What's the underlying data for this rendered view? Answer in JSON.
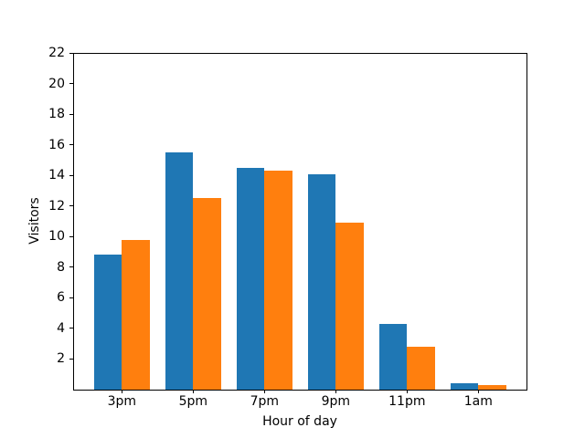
{
  "figure": {
    "background": "#ffffff",
    "spine_color": "#000000"
  },
  "chart_data": {
    "type": "bar",
    "title": "",
    "xlabel": "Hour of day",
    "ylabel": "Visitors",
    "categories": [
      "3pm",
      "5pm",
      "7pm",
      "9pm",
      "11pm",
      "1am"
    ],
    "series": [
      {
        "name": "blue",
        "color": "#1f77b4",
        "values": [
          8.8,
          15.5,
          14.5,
          14.1,
          4.3,
          0.4
        ]
      },
      {
        "name": "orange",
        "color": "#ff7f0e",
        "values": [
          9.8,
          12.5,
          14.3,
          10.9,
          2.8,
          0.3
        ]
      }
    ],
    "ylim": [
      0,
      22
    ],
    "yticks": [
      2,
      4,
      6,
      8,
      10,
      12,
      14,
      16,
      18,
      20,
      22
    ],
    "grid": false,
    "legend": null
  }
}
